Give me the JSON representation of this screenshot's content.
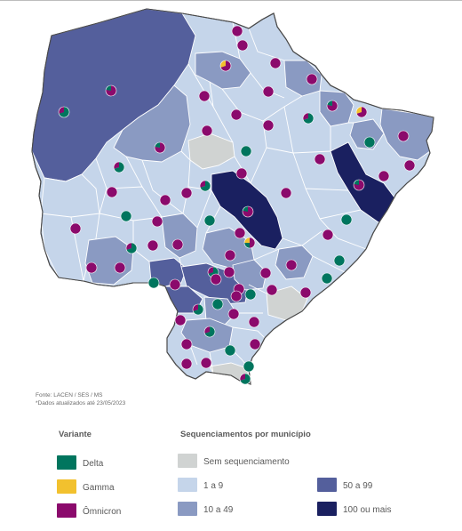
{
  "source": {
    "line1": "Fonte: LACEN / SES / MS",
    "line2": "*Dados atualizados até 23/05/2023"
  },
  "legend_variant": {
    "title": "Variante",
    "items": [
      {
        "label": "Delta",
        "color": "#00755e"
      },
      {
        "label": "Gamma",
        "color": "#f2c12e"
      },
      {
        "label": "Ômnicron",
        "color": "#8b0a6c"
      }
    ]
  },
  "legend_seq": {
    "title": "Sequenciamentos por município",
    "items": [
      {
        "label": "Sem sequenciamento",
        "color": "#d0d3d2"
      },
      {
        "label": "1 a 9",
        "color": "#c5d5ea"
      },
      {
        "label": "10 a 49",
        "color": "#8a9ac2"
      },
      {
        "label": "50 a 99",
        "color": "#545f9c"
      },
      {
        "label": "100 ou mais",
        "color": "#1a2060"
      }
    ]
  },
  "map_style": {
    "border_color": "#4a4a4a",
    "municipality_line": "#ffffff"
  }
}
